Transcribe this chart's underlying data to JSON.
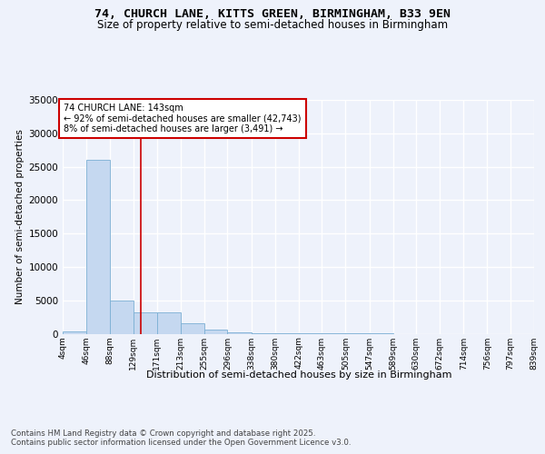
{
  "title_line1": "74, CHURCH LANE, KITTS GREEN, BIRMINGHAM, B33 9EN",
  "title_line2": "Size of property relative to semi-detached houses in Birmingham",
  "xlabel": "Distribution of semi-detached houses by size in Birmingham",
  "ylabel": "Number of semi-detached properties",
  "footer_line1": "Contains HM Land Registry data © Crown copyright and database right 2025.",
  "footer_line2": "Contains public sector information licensed under the Open Government Licence v3.0.",
  "annotation_line1": "74 CHURCH LANE: 143sqm",
  "annotation_line2": "← 92% of semi-detached houses are smaller (42,743)",
  "annotation_line3": "8% of semi-detached houses are larger (3,491) →",
  "bin_labels": [
    "4sqm",
    "46sqm",
    "88sqm",
    "129sqm",
    "171sqm",
    "213sqm",
    "255sqm",
    "296sqm",
    "338sqm",
    "380sqm",
    "422sqm",
    "463sqm",
    "505sqm",
    "547sqm",
    "589sqm",
    "630sqm",
    "672sqm",
    "714sqm",
    "756sqm",
    "797sqm",
    "839sqm"
  ],
  "bin_edges": [
    4,
    46,
    88,
    129,
    171,
    213,
    255,
    296,
    338,
    380,
    422,
    463,
    505,
    547,
    589,
    630,
    672,
    714,
    756,
    797,
    839
  ],
  "bar_values": [
    400,
    26000,
    5000,
    3200,
    3200,
    1500,
    600,
    200,
    60,
    20,
    8,
    4,
    2,
    1,
    0,
    0,
    0,
    0,
    0,
    0
  ],
  "bar_color": "#c5d8f0",
  "bar_edge_color": "#7bafd4",
  "vline_color": "#cc0000",
  "vline_x": 143,
  "ylim": [
    0,
    35000
  ],
  "yticks": [
    0,
    5000,
    10000,
    15000,
    20000,
    25000,
    30000,
    35000
  ],
  "background_color": "#eef2fb",
  "plot_background": "#eef2fb",
  "grid_color": "#ffffff",
  "annotation_box_color": "#ffffff",
  "annotation_box_edge": "#cc0000",
  "title_fontsize": 9.5,
  "subtitle_fontsize": 8.5
}
